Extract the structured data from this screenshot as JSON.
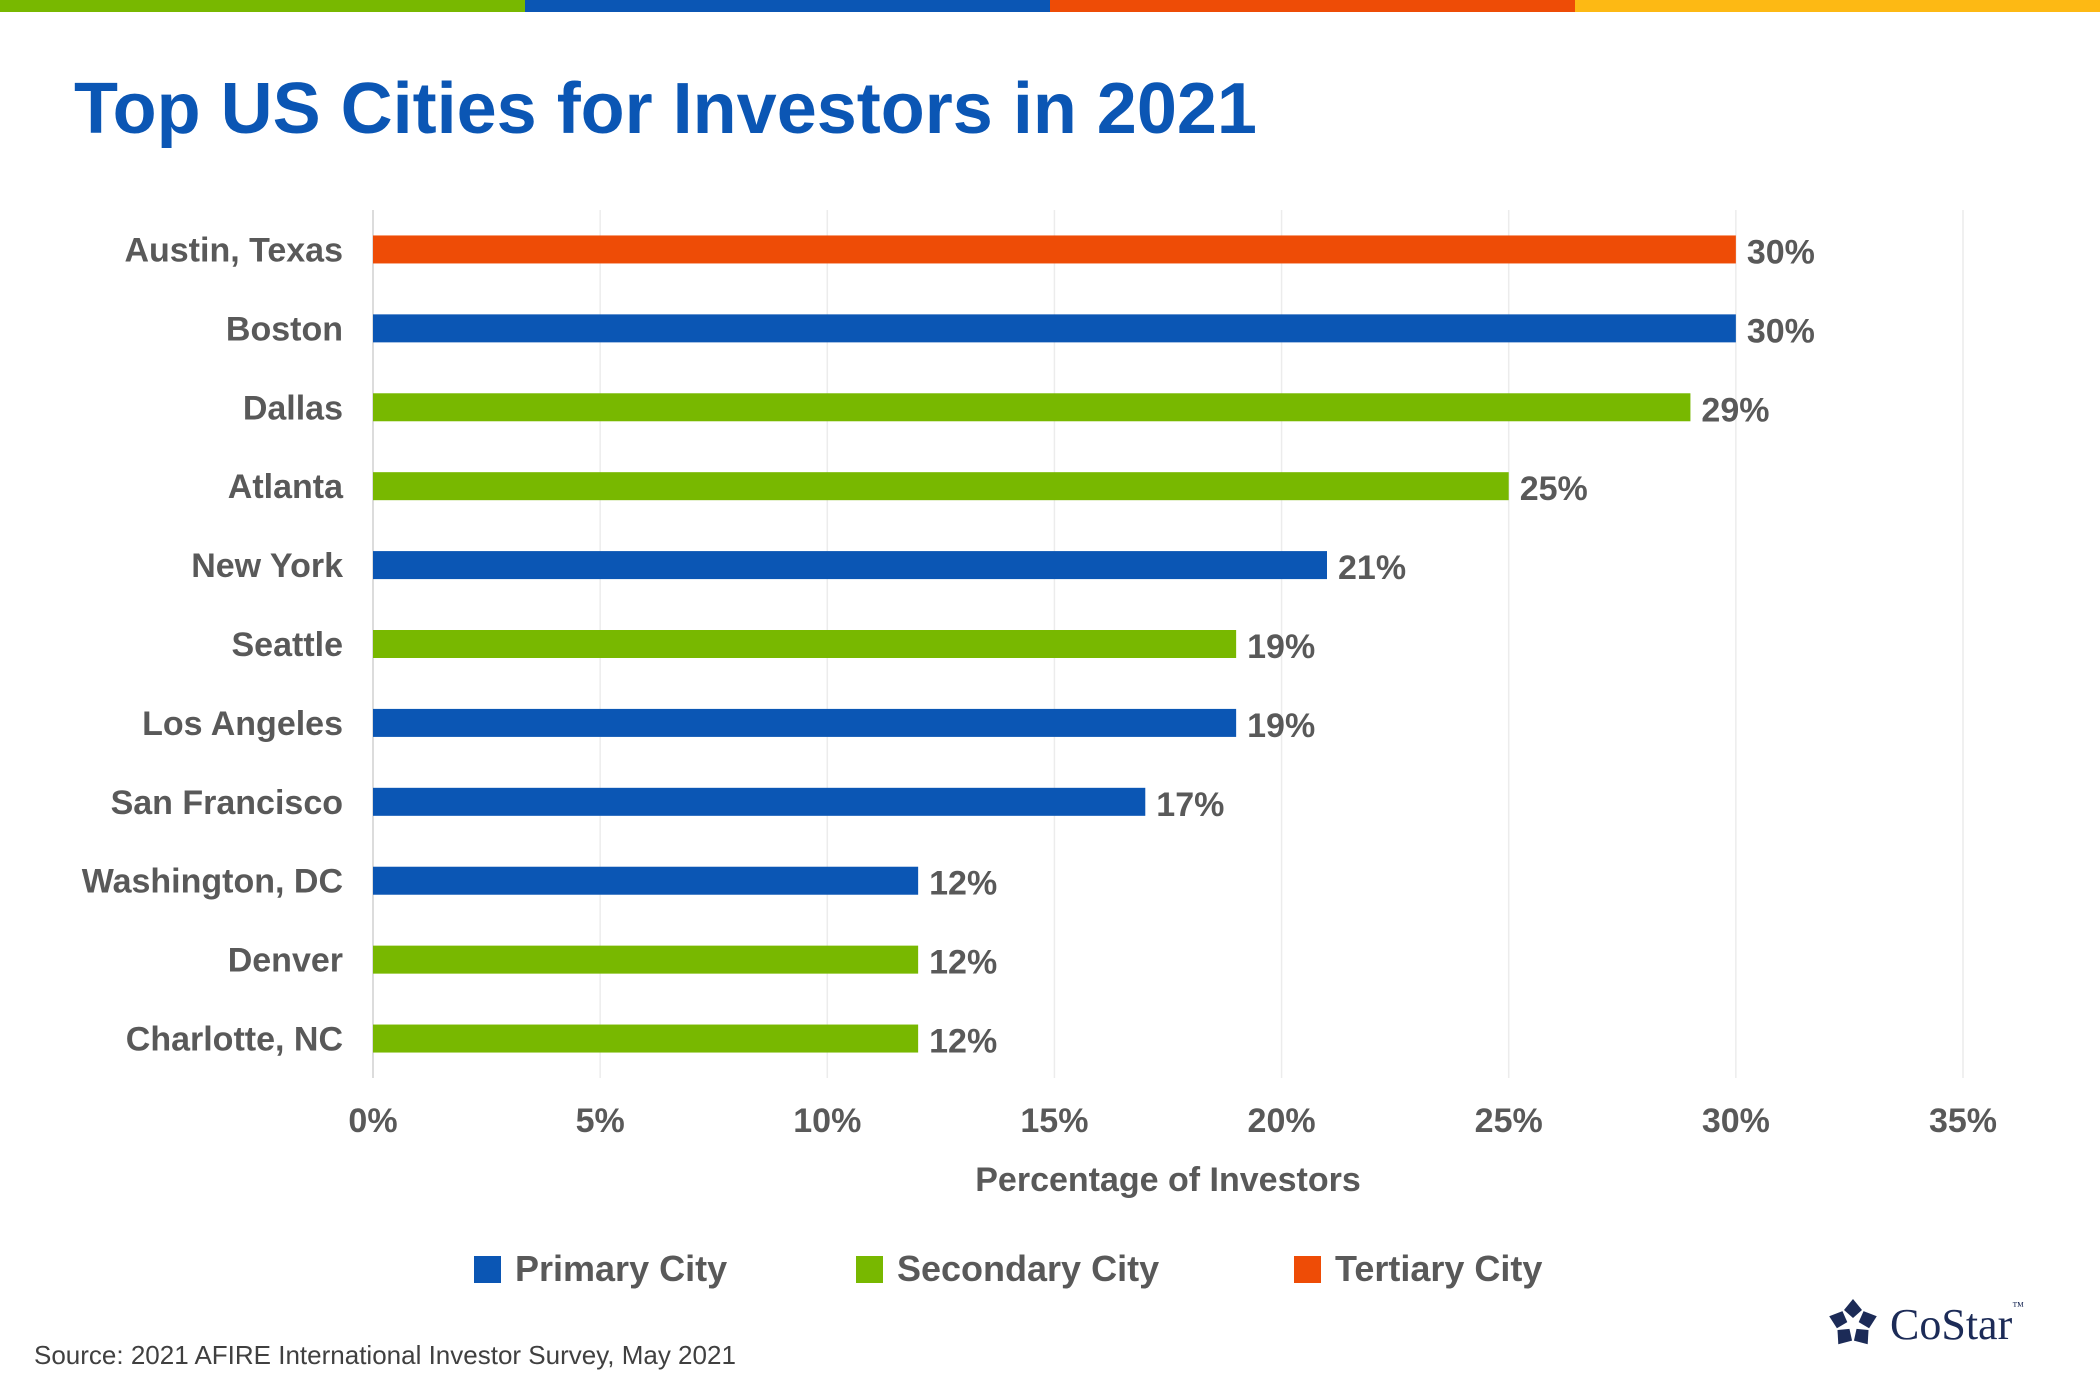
{
  "title": "Top US Cities for Investors in 2021",
  "stripe_colors": [
    "#78b800",
    "#0b56b4",
    "#ee4c06",
    "#fdb914"
  ],
  "legend": [
    {
      "label": "Primary City",
      "color": "#0b56b4"
    },
    {
      "label": "Secondary City",
      "color": "#78b800"
    },
    {
      "label": "Tertiary City",
      "color": "#ee4c06"
    }
  ],
  "source": "Source: 2021 AFIRE International Investor Survey, May 2021",
  "logo": {
    "text": "CoStar",
    "tm": "™",
    "icon": "costar-star-logo-icon",
    "color": "#1c2b57"
  },
  "chart_data": {
    "type": "bar",
    "orientation": "horizontal",
    "title": "Top US Cities for Investors in 2021",
    "xlabel": "Percentage of Investors",
    "ylabel": "",
    "xlim": [
      0,
      35
    ],
    "x_ticks": [
      "0%",
      "5%",
      "10%",
      "15%",
      "20%",
      "25%",
      "30%",
      "35%"
    ],
    "x_tick_values": [
      0,
      5,
      10,
      15,
      20,
      25,
      30,
      35
    ],
    "grid": true,
    "legend_position": "bottom",
    "categories": [
      "Austin, Texas",
      "Boston",
      "Dallas",
      "Atlanta",
      "New York",
      "Seattle",
      "Los Angeles",
      "San Francisco",
      "Washington, DC",
      "Denver",
      "Charlotte, NC"
    ],
    "values": [
      30,
      30,
      29,
      25,
      21,
      19,
      19,
      17,
      12,
      12,
      12
    ],
    "value_labels": [
      "30%",
      "30%",
      "29%",
      "25%",
      "21%",
      "19%",
      "19%",
      "17%",
      "12%",
      "12%",
      "12%"
    ],
    "city_class": [
      "Tertiary City",
      "Primary City",
      "Secondary City",
      "Secondary City",
      "Primary City",
      "Secondary City",
      "Primary City",
      "Primary City",
      "Primary City",
      "Secondary City",
      "Secondary City"
    ]
  }
}
